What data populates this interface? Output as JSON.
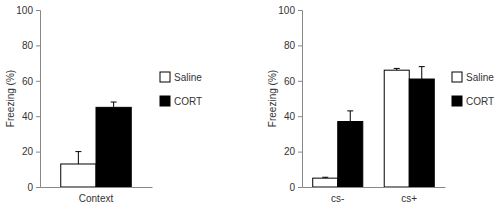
{
  "chart_data": [
    {
      "type": "bar",
      "y_label": "Freezing (%)",
      "categories": [
        "Context"
      ],
      "series": [
        {
          "name": "Saline",
          "color": "#ffffff",
          "values": [
            13
          ],
          "errors": [
            7
          ]
        },
        {
          "name": "CORT",
          "color": "#000000",
          "values": [
            45
          ],
          "errors": [
            3
          ]
        }
      ],
      "ylim": [
        0,
        100
      ],
      "yticks": [
        0,
        20,
        40,
        60,
        80,
        100
      ],
      "legend": "right"
    },
    {
      "type": "bar",
      "y_label": "Freezing (%)",
      "categories": [
        "cs-",
        "cs+"
      ],
      "series": [
        {
          "name": "Saline",
          "color": "#ffffff",
          "values": [
            5,
            66
          ],
          "errors": [
            0.5,
            1
          ]
        },
        {
          "name": "CORT",
          "color": "#000000",
          "values": [
            37,
            61
          ],
          "errors": [
            6,
            7
          ]
        }
      ],
      "ylim": [
        0,
        100
      ],
      "yticks": [
        0,
        20,
        40,
        60,
        80,
        100
      ],
      "legend": "right"
    }
  ]
}
